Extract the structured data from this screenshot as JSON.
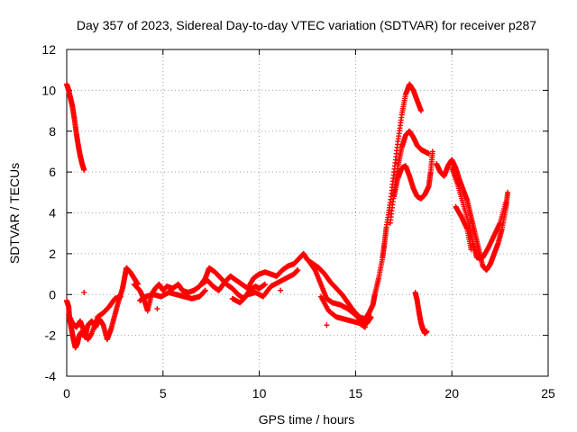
{
  "chart_data": {
    "type": "scatter",
    "title": "Day 357 of 2023, Sidereal Day-to-day VTEC variation (SDTVAR) for receiver p287",
    "xlabel": "GPS time / hours",
    "ylabel": "SDTVAR / TECUs",
    "xlim": [
      0,
      25
    ],
    "ylim": [
      -4,
      12
    ],
    "grid": true,
    "marker": "plus",
    "color": "#ff0000",
    "x_ticks": [
      "0",
      "5",
      "10",
      "15",
      "20",
      "25"
    ],
    "y_ticks": [
      "-4",
      "-2",
      "0",
      "2",
      "4",
      "6",
      "8",
      "10",
      "12"
    ],
    "series": [
      {
        "name": "p287",
        "segments": [
          [
            [
              0.0,
              10.3
            ],
            [
              0.1,
              10.0
            ],
            [
              0.2,
              9.6
            ],
            [
              0.3,
              9.2
            ],
            [
              0.4,
              8.6
            ],
            [
              0.5,
              7.9
            ],
            [
              0.6,
              7.3
            ],
            [
              0.7,
              6.8
            ],
            [
              0.8,
              6.4
            ],
            [
              0.9,
              6.1
            ]
          ],
          [
            [
              0.0,
              -0.3
            ],
            [
              0.1,
              -0.6
            ],
            [
              0.15,
              -1.2
            ],
            [
              0.25,
              -1.7
            ],
            [
              0.35,
              -2.2
            ],
            [
              0.45,
              -2.6
            ],
            [
              0.55,
              -2.4
            ],
            [
              0.65,
              -2.0
            ],
            [
              0.8,
              -1.8
            ],
            [
              0.95,
              -2.1
            ],
            [
              1.1,
              -1.5
            ],
            [
              1.3,
              -1.3
            ],
            [
              1.5,
              -1.6
            ],
            [
              1.7,
              -1.2
            ],
            [
              1.9,
              -1.5
            ],
            [
              2.1,
              -2.2
            ],
            [
              2.3,
              -1.7
            ],
            [
              2.5,
              -1.0
            ],
            [
              2.7,
              -0.3
            ],
            [
              2.9,
              0.3
            ],
            [
              3.0,
              0.8
            ],
            [
              3.1,
              1.3
            ],
            [
              3.3,
              1.1
            ],
            [
              3.5,
              0.8
            ],
            [
              3.7,
              0.5
            ]
          ],
          [
            [
              0.1,
              -1.0
            ],
            [
              0.3,
              -1.4
            ],
            [
              0.5,
              -1.6
            ],
            [
              0.7,
              -1.3
            ],
            [
              0.9,
              -1.8
            ],
            [
              1.1,
              -2.2
            ],
            [
              1.3,
              -1.9
            ],
            [
              1.6,
              -1.1
            ],
            [
              1.9,
              -0.9
            ],
            [
              2.2,
              -0.6
            ],
            [
              2.5,
              -0.2
            ],
            [
              2.8,
              -0.1
            ]
          ],
          [
            [
              0.9,
              0.1
            ]
          ],
          [
            [
              3.5,
              0.5
            ],
            [
              3.8,
              0.2
            ],
            [
              4.0,
              -0.2
            ],
            [
              4.2,
              -0.8
            ],
            [
              4.4,
              0.0
            ],
            [
              4.6,
              0.3
            ],
            [
              4.8,
              0.5
            ],
            [
              5.0,
              0.2
            ],
            [
              5.2,
              0.4
            ],
            [
              5.5,
              0.3
            ],
            [
              5.8,
              0.5
            ],
            [
              6.0,
              0.2
            ],
            [
              6.3,
              0.1
            ],
            [
              6.6,
              0.2
            ]
          ],
          [
            [
              4.7,
              -0.7
            ]
          ],
          [
            [
              3.8,
              -0.3
            ],
            [
              4.1,
              -0.1
            ],
            [
              4.5,
              0.0
            ],
            [
              4.9,
              -0.1
            ],
            [
              5.3,
              0.1
            ],
            [
              5.7,
              0.0
            ],
            [
              6.1,
              -0.1
            ],
            [
              6.5,
              -0.2
            ],
            [
              6.9,
              -0.1
            ],
            [
              7.2,
              0.2
            ]
          ],
          [
            [
              6.6,
              0.2
            ],
            [
              6.9,
              0.4
            ],
            [
              7.2,
              0.8
            ],
            [
              7.4,
              1.3
            ],
            [
              7.7,
              1.1
            ],
            [
              8.0,
              0.8
            ],
            [
              8.3,
              0.5
            ],
            [
              8.6,
              0.3
            ],
            [
              8.9,
              0.0
            ],
            [
              9.2,
              -0.2
            ],
            [
              9.5,
              0.2
            ],
            [
              9.8,
              0.4
            ],
            [
              10.0,
              0.3
            ],
            [
              10.3,
              0.5
            ]
          ],
          [
            [
              7.0,
              0.5
            ],
            [
              7.3,
              0.7
            ],
            [
              7.6,
              0.4
            ],
            [
              7.9,
              0.2
            ],
            [
              8.2,
              0.6
            ],
            [
              8.5,
              0.9
            ],
            [
              8.8,
              0.7
            ],
            [
              9.1,
              0.5
            ],
            [
              9.4,
              0.3
            ],
            [
              9.7,
              0.8
            ],
            [
              10.0,
              1.0
            ],
            [
              10.3,
              1.1
            ],
            [
              10.6,
              1.0
            ],
            [
              10.9,
              0.9
            ],
            [
              11.2,
              1.2
            ],
            [
              11.5,
              1.4
            ],
            [
              11.8,
              1.5
            ],
            [
              12.1,
              1.8
            ],
            [
              12.3,
              2.0
            ],
            [
              12.5,
              1.7
            ]
          ],
          [
            [
              8.6,
              -0.2
            ],
            [
              9.0,
              -0.4
            ],
            [
              9.4,
              0.0
            ],
            [
              9.8,
              0.1
            ],
            [
              10.2,
              -0.1
            ],
            [
              10.6,
              0.4
            ],
            [
              11.0,
              0.6
            ],
            [
              11.4,
              0.8
            ],
            [
              11.8,
              1.0
            ],
            [
              12.0,
              1.2
            ]
          ],
          [
            [
              11.1,
              0.2
            ]
          ],
          [
            [
              12.5,
              1.7
            ],
            [
              12.8,
              1.5
            ],
            [
              13.1,
              1.3
            ],
            [
              13.4,
              1.0
            ],
            [
              13.7,
              0.6
            ],
            [
              14.0,
              0.3
            ],
            [
              14.3,
              0.0
            ],
            [
              14.6,
              -0.4
            ],
            [
              14.9,
              -0.8
            ],
            [
              15.2,
              -1.1
            ],
            [
              15.5,
              -1.2
            ],
            [
              15.7,
              -0.9
            ],
            [
              15.9,
              -0.5
            ],
            [
              16.0,
              0.0
            ]
          ],
          [
            [
              12.6,
              1.6
            ],
            [
              12.9,
              1.2
            ],
            [
              13.2,
              0.5
            ],
            [
              13.5,
              -0.2
            ],
            [
              13.8,
              -0.4
            ],
            [
              14.2,
              -0.5
            ],
            [
              14.6,
              -0.7
            ],
            [
              15.0,
              -1.0
            ],
            [
              15.3,
              -1.3
            ],
            [
              15.6,
              -1.4
            ],
            [
              15.8,
              -1.1
            ]
          ],
          [
            [
              13.2,
              -0.1
            ],
            [
              13.6,
              -0.8
            ],
            [
              14.0,
              -1.1
            ],
            [
              14.4,
              -1.2
            ],
            [
              14.8,
              -1.3
            ],
            [
              15.2,
              -1.4
            ],
            [
              15.5,
              -1.6
            ]
          ],
          [
            [
              13.5,
              -1.5
            ]
          ],
          [
            [
              16.0,
              0.0
            ],
            [
              16.2,
              0.8
            ],
            [
              16.4,
              1.8
            ],
            [
              16.5,
              2.5
            ],
            [
              16.6,
              3.3
            ],
            [
              16.8,
              4.5
            ],
            [
              17.0,
              6.0
            ],
            [
              17.2,
              7.5
            ],
            [
              17.4,
              8.8
            ],
            [
              17.6,
              9.8
            ],
            [
              17.8,
              10.3
            ],
            [
              18.0,
              10.0
            ],
            [
              18.2,
              9.5
            ],
            [
              18.4,
              9.0
            ]
          ],
          [
            [
              16.8,
              3.5
            ],
            [
              17.0,
              5.0
            ],
            [
              17.2,
              6.3
            ],
            [
              17.4,
              7.2
            ],
            [
              17.6,
              7.8
            ],
            [
              17.8,
              8.0
            ],
            [
              18.0,
              7.7
            ],
            [
              18.2,
              7.3
            ],
            [
              18.4,
              7.1
            ],
            [
              18.6,
              7.0
            ],
            [
              18.8,
              6.9
            ]
          ],
          [
            [
              17.0,
              4.8
            ],
            [
              17.2,
              5.7
            ],
            [
              17.4,
              6.2
            ],
            [
              17.6,
              6.3
            ],
            [
              17.8,
              5.8
            ],
            [
              18.0,
              5.2
            ],
            [
              18.2,
              4.8
            ],
            [
              18.4,
              4.7
            ],
            [
              18.6,
              4.9
            ],
            [
              18.8,
              5.3
            ],
            [
              18.9,
              6.0
            ],
            [
              19.0,
              7.0
            ]
          ],
          [
            [
              18.1,
              0.1
            ],
            [
              18.2,
              -0.3
            ],
            [
              18.3,
              -0.9
            ],
            [
              18.4,
              -1.4
            ],
            [
              18.5,
              -1.7
            ],
            [
              18.6,
              -1.9
            ],
            [
              18.7,
              -1.8
            ]
          ],
          [
            [
              19.2,
              6.4
            ],
            [
              19.4,
              6.0
            ],
            [
              19.6,
              5.8
            ],
            [
              19.8,
              6.3
            ],
            [
              20.0,
              6.6
            ],
            [
              20.2,
              6.2
            ],
            [
              20.4,
              5.6
            ],
            [
              20.6,
              5.1
            ],
            [
              20.8,
              4.6
            ],
            [
              21.0,
              3.8
            ],
            [
              21.2,
              3.0
            ],
            [
              21.4,
              2.2
            ],
            [
              21.6,
              1.4
            ],
            [
              21.8,
              1.2
            ],
            [
              22.0,
              1.5
            ],
            [
              22.2,
              2.0
            ],
            [
              22.4,
              2.5
            ],
            [
              22.6,
              3.2
            ],
            [
              22.8,
              4.2
            ],
            [
              22.9,
              5.0
            ]
          ],
          [
            [
              20.0,
              6.2
            ],
            [
              20.3,
              5.4
            ],
            [
              20.6,
              4.4
            ],
            [
              20.9,
              3.4
            ],
            [
              21.1,
              2.5
            ],
            [
              21.3,
              1.8
            ],
            [
              21.6,
              1.8
            ],
            [
              21.9,
              2.3
            ],
            [
              22.2,
              2.9
            ],
            [
              22.5,
              3.5
            ],
            [
              22.8,
              4.5
            ]
          ],
          [
            [
              20.2,
              4.3
            ],
            [
              20.5,
              3.8
            ],
            [
              20.8,
              3.2
            ],
            [
              21.0,
              2.2
            ]
          ]
        ]
      }
    ]
  }
}
